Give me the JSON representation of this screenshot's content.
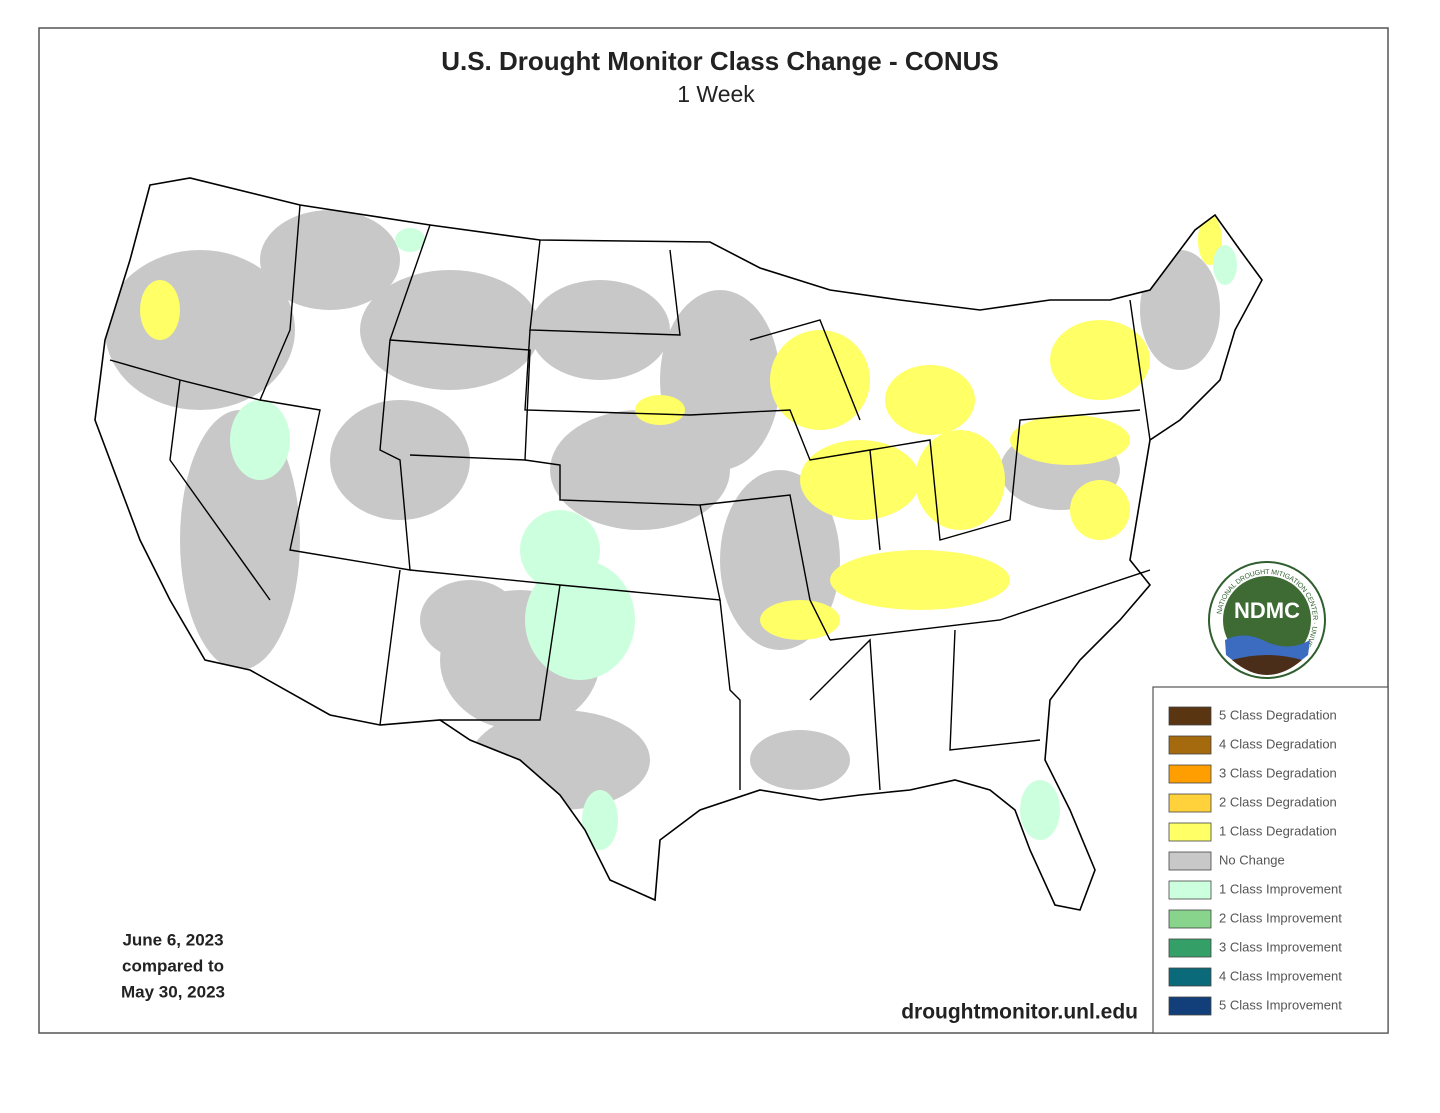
{
  "title": "U.S. Drought Monitor Class Change - CONUS",
  "subtitle": "1 Week",
  "legend": [
    {
      "label": "5 Class Degradation",
      "color": "#5a3511"
    },
    {
      "label": "4 Class Degradation",
      "color": "#a66a0e"
    },
    {
      "label": "3 Class Degradation",
      "color": "#ff9e00"
    },
    {
      "label": "2 Class Degradation",
      "color": "#ffd23b"
    },
    {
      "label": "1 Class Degradation",
      "color": "#ffff66"
    },
    {
      "label": "No Change",
      "color": "#c8c8c8"
    },
    {
      "label": "1 Class Improvement",
      "color": "#ccffdd"
    },
    {
      "label": "2 Class Improvement",
      "color": "#88d48c"
    },
    {
      "label": "3 Class Improvement",
      "color": "#34a067"
    },
    {
      "label": "4 Class Improvement",
      "color": "#0b6a79"
    },
    {
      "label": "5 Class Improvement",
      "color": "#123f7a"
    }
  ],
  "date_note": [
    "June 6, 2023",
    "compared to",
    "May 30, 2023"
  ],
  "source": "droughtmonitor.unl.edu",
  "logo": {
    "text": "NDMC",
    "ring_text": "NATIONAL DROUGHT MITIGATION CENTER · UNIVERSITY OF NEBRASKA"
  }
}
